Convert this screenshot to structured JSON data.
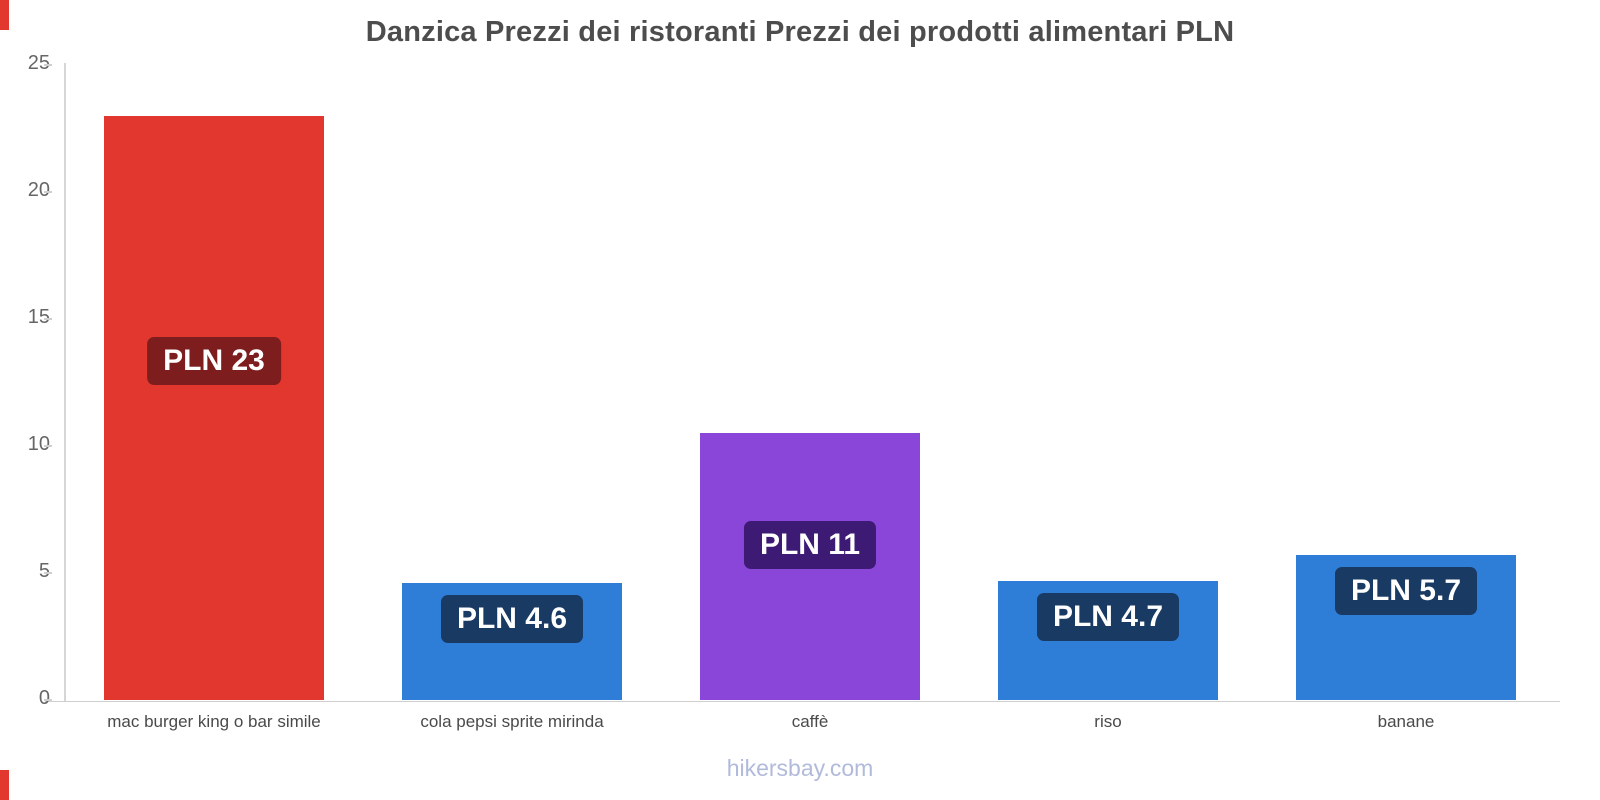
{
  "page": {
    "title": "Danzica Prezzi dei ristoranti Prezzi dei prodotti alimentari PLN",
    "footer": "hikersbay.com",
    "accent_color": "#e2372e"
  },
  "chart_data": {
    "type": "bar",
    "title": "Danzica Prezzi dei ristoranti Prezzi dei prodotti alimentari PLN",
    "categories": [
      "mac burger king o bar simile",
      "cola pepsi sprite mirinda",
      "caffè",
      "riso",
      "banane"
    ],
    "values": [
      23,
      4.6,
      10.5,
      4.7,
      5.7
    ],
    "bar_labels": [
      "PLN 23",
      "PLN 4.6",
      "PLN 11",
      "PLN 4.7",
      "PLN 5.7"
    ],
    "bar_colors": [
      "#e2372e",
      "#2e7ed8",
      "#8a46d8",
      "#2e7ed8",
      "#2e7ed8"
    ],
    "label_bg_colors": [
      "#7d1d1d",
      "#193a63",
      "#3d1a73",
      "#193a63",
      "#193a63"
    ],
    "currency": "PLN",
    "xlabel": "",
    "ylabel": "",
    "ylim": [
      0,
      25
    ],
    "yticks": [
      0,
      5,
      10,
      15,
      20,
      25
    ],
    "grid": false,
    "legend": "none"
  }
}
